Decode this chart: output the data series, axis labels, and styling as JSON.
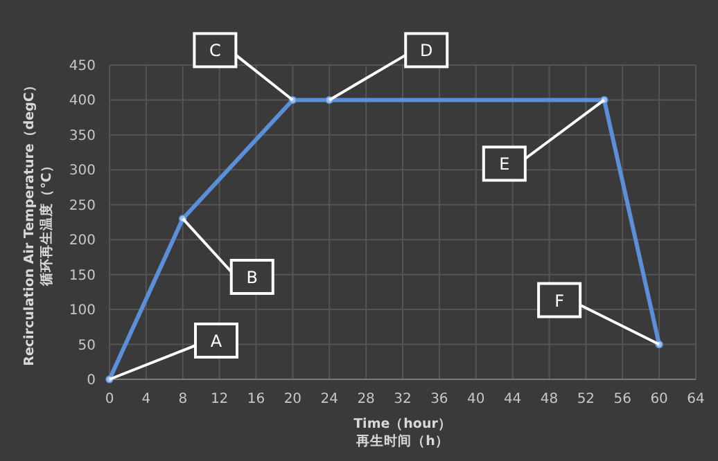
{
  "chart_data": {
    "type": "line",
    "xlabel": "Time（hour）再生时间（h）",
    "ylabel": "Recirculation Air Temperature（degC）循环再生温度（℃）",
    "x": [
      0,
      8,
      20,
      24,
      54,
      60
    ],
    "series": [
      {
        "color": "#5b8fd9",
        "values": [
          0,
          230,
          400,
          400,
          400,
          50
        ]
      }
    ],
    "xlim": [
      0,
      64
    ],
    "xticks": [
      0,
      4,
      8,
      12,
      16,
      20,
      24,
      28,
      32,
      36,
      40,
      44,
      48,
      52,
      56,
      60,
      64
    ],
    "ylim": [
      0,
      450
    ],
    "yticks": [
      0,
      50,
      100,
      150,
      200,
      250,
      300,
      350,
      400,
      450
    ],
    "grid": true,
    "marker": "circle",
    "line_style": "solid",
    "annotations": [
      {
        "text": "A",
        "x": 0,
        "y": 0
      },
      {
        "text": "B",
        "x": 8,
        "y": 230
      },
      {
        "text": "C",
        "x": 20,
        "y": 400
      },
      {
        "text": "D",
        "x": 24,
        "y": 400
      },
      {
        "text": "E",
        "x": 54,
        "y": 400
      },
      {
        "text": "F",
        "x": 60,
        "y": 50
      }
    ]
  }
}
